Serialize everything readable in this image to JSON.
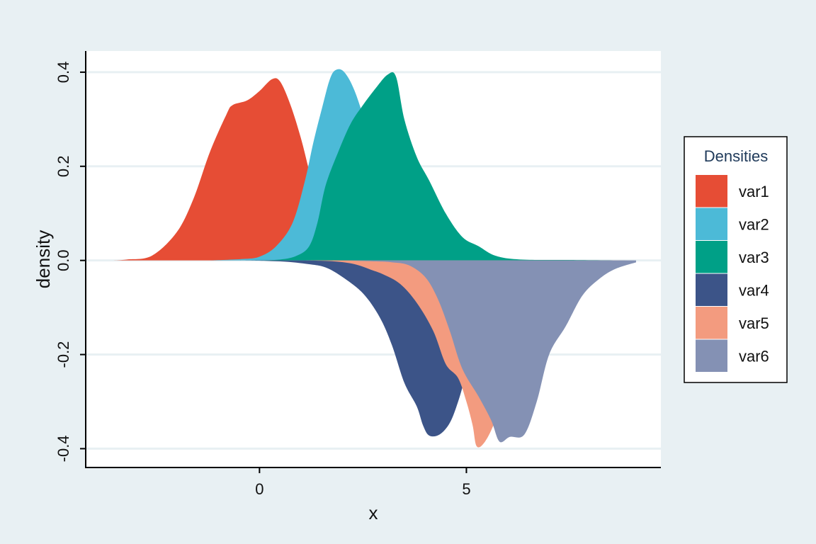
{
  "chart_data": {
    "type": "area",
    "xlabel": "x",
    "ylabel": "density",
    "xlim": [
      -4.2,
      9.7
    ],
    "ylim": [
      -0.44,
      0.445
    ],
    "x_ticks": [
      0,
      5
    ],
    "x_tick_labels": [
      "0",
      "5"
    ],
    "y_ticks": [
      -0.4,
      -0.2,
      0.0,
      0.2,
      0.4
    ],
    "y_tick_labels": [
      "-0.4",
      "-0.2",
      "0.0",
      "0.2",
      "0.4"
    ],
    "grid": "horizontal",
    "legend": {
      "title": "Densities",
      "position": "right"
    },
    "series": [
      {
        "name": "var1",
        "color": "#e64d35",
        "direction": "up",
        "points": [
          [
            -3.55,
            0
          ],
          [
            -3.2,
            0.002
          ],
          [
            -2.6,
            0.01
          ],
          [
            -2.0,
            0.06
          ],
          [
            -1.6,
            0.13
          ],
          [
            -1.2,
            0.23
          ],
          [
            -0.8,
            0.31
          ],
          [
            -0.65,
            0.33
          ],
          [
            -0.3,
            0.34
          ],
          [
            0.0,
            0.36
          ],
          [
            0.3,
            0.385
          ],
          [
            0.5,
            0.38
          ],
          [
            0.75,
            0.33
          ],
          [
            1.0,
            0.26
          ],
          [
            1.2,
            0.19
          ],
          [
            1.4,
            0.12
          ],
          [
            1.7,
            0.06
          ],
          [
            2.1,
            0.02
          ],
          [
            2.6,
            0.005
          ],
          [
            3.2,
            0
          ]
        ]
      },
      {
        "name": "var2",
        "color": "#4cbad7",
        "direction": "up",
        "points": [
          [
            -1.2,
            0
          ],
          [
            -0.4,
            0.003
          ],
          [
            0.0,
            0.008
          ],
          [
            0.4,
            0.03
          ],
          [
            0.8,
            0.08
          ],
          [
            1.1,
            0.17
          ],
          [
            1.3,
            0.25
          ],
          [
            1.5,
            0.32
          ],
          [
            1.7,
            0.385
          ],
          [
            1.85,
            0.405
          ],
          [
            2.05,
            0.4
          ],
          [
            2.3,
            0.36
          ],
          [
            2.6,
            0.28
          ],
          [
            2.9,
            0.19
          ],
          [
            3.2,
            0.11
          ],
          [
            3.6,
            0.05
          ],
          [
            4.1,
            0.015
          ],
          [
            4.8,
            0.003
          ],
          [
            5.5,
            0
          ]
        ]
      },
      {
        "name": "var3",
        "color": "#00a087",
        "direction": "up",
        "points": [
          [
            -0.2,
            0
          ],
          [
            0.5,
            0.002
          ],
          [
            0.9,
            0.01
          ],
          [
            1.2,
            0.03
          ],
          [
            1.4,
            0.08
          ],
          [
            1.6,
            0.16
          ],
          [
            1.9,
            0.23
          ],
          [
            2.2,
            0.29
          ],
          [
            2.5,
            0.33
          ],
          [
            2.8,
            0.365
          ],
          [
            3.1,
            0.395
          ],
          [
            3.3,
            0.39
          ],
          [
            3.5,
            0.3
          ],
          [
            3.8,
            0.22
          ],
          [
            4.1,
            0.17
          ],
          [
            4.5,
            0.1
          ],
          [
            4.9,
            0.05
          ],
          [
            5.3,
            0.03
          ],
          [
            5.7,
            0.01
          ],
          [
            6.3,
            0.002
          ],
          [
            7.5,
            0.001
          ],
          [
            9.1,
            0
          ]
        ]
      },
      {
        "name": "var4",
        "color": "#3c5488",
        "direction": "down",
        "points": [
          [
            -0.5,
            0
          ],
          [
            0.5,
            0.002
          ],
          [
            1.2,
            0.008
          ],
          [
            1.6,
            0.015
          ],
          [
            2.0,
            0.035
          ],
          [
            2.5,
            0.07
          ],
          [
            2.9,
            0.12
          ],
          [
            3.2,
            0.18
          ],
          [
            3.5,
            0.26
          ],
          [
            3.8,
            0.31
          ],
          [
            3.95,
            0.35
          ],
          [
            4.1,
            0.372
          ],
          [
            4.35,
            0.37
          ],
          [
            4.6,
            0.345
          ],
          [
            4.8,
            0.3
          ],
          [
            5.0,
            0.24
          ],
          [
            5.3,
            0.15
          ],
          [
            5.7,
            0.07
          ],
          [
            6.2,
            0.02
          ],
          [
            6.8,
            0.004
          ],
          [
            7.5,
            0
          ]
        ]
      },
      {
        "name": "var5",
        "color": "#f39b7f",
        "direction": "down",
        "points": [
          [
            1.0,
            0
          ],
          [
            1.8,
            0.002
          ],
          [
            2.3,
            0.008
          ],
          [
            2.7,
            0.02
          ],
          [
            3.0,
            0.03
          ],
          [
            3.4,
            0.05
          ],
          [
            3.8,
            0.09
          ],
          [
            4.2,
            0.15
          ],
          [
            4.5,
            0.22
          ],
          [
            4.8,
            0.25
          ],
          [
            5.0,
            0.3
          ],
          [
            5.15,
            0.35
          ],
          [
            5.25,
            0.395
          ],
          [
            5.45,
            0.385
          ],
          [
            5.7,
            0.34
          ],
          [
            6.0,
            0.26
          ],
          [
            6.4,
            0.17
          ],
          [
            6.9,
            0.08
          ],
          [
            7.5,
            0.02
          ],
          [
            8.3,
            0.003
          ],
          [
            9.1,
            0
          ]
        ]
      },
      {
        "name": "var6",
        "color": "#8491b4",
        "direction": "down",
        "points": [
          [
            2.0,
            0
          ],
          [
            2.8,
            0.002
          ],
          [
            3.2,
            0.004
          ],
          [
            3.6,
            0.01
          ],
          [
            4.0,
            0.035
          ],
          [
            4.3,
            0.08
          ],
          [
            4.6,
            0.15
          ],
          [
            4.9,
            0.23
          ],
          [
            5.3,
            0.29
          ],
          [
            5.6,
            0.34
          ],
          [
            5.8,
            0.385
          ],
          [
            6.05,
            0.375
          ],
          [
            6.4,
            0.37
          ],
          [
            6.7,
            0.3
          ],
          [
            7.0,
            0.2
          ],
          [
            7.4,
            0.14
          ],
          [
            7.8,
            0.075
          ],
          [
            8.2,
            0.04
          ],
          [
            8.6,
            0.018
          ],
          [
            9.1,
            0.004
          ]
        ]
      }
    ]
  }
}
